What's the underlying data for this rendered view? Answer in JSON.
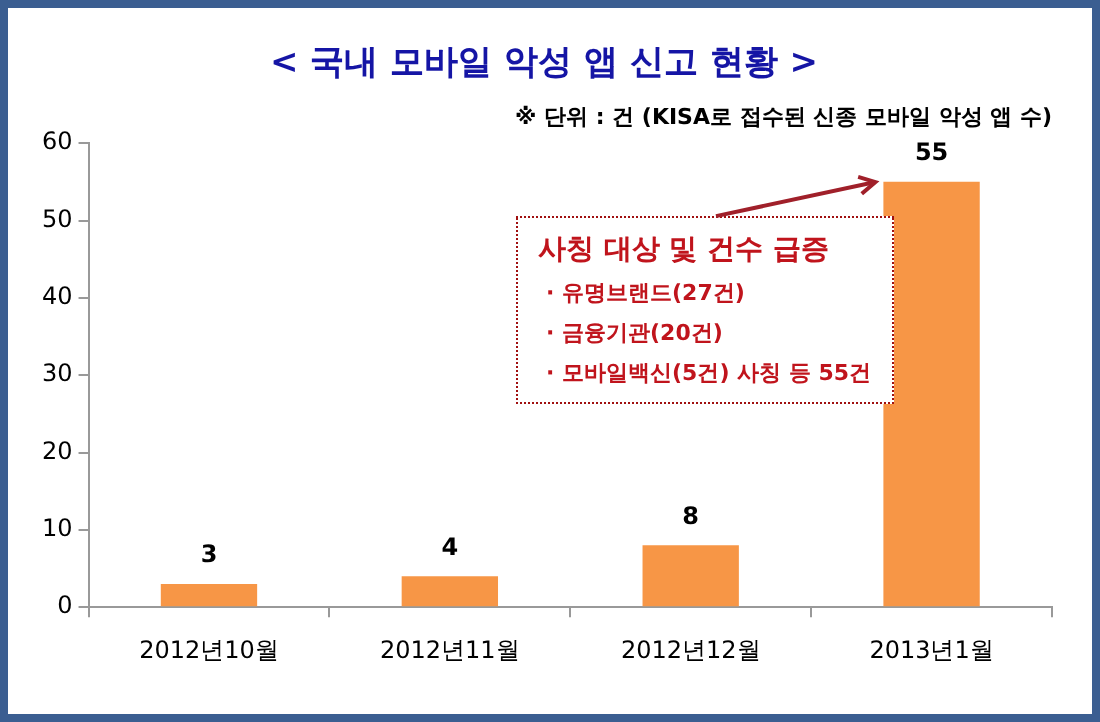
{
  "chart_data": {
    "type": "bar",
    "title": "< 국내 모바일 악성 앱 신고 현황 >",
    "subtitle": "※ 단위 : 건 (KISA로 접수된 신종 모바일 악성 앱 수)",
    "categories": [
      "2012년10월",
      "2012년11월",
      "2012년12월",
      "2013년1월"
    ],
    "values": [
      3,
      4,
      8,
      55
    ],
    "color": "#f79646",
    "ylim": [
      0,
      60
    ],
    "yticks": [
      0,
      10,
      20,
      30,
      40,
      50,
      60
    ],
    "data_labels": true,
    "legend": false,
    "annotations": [
      "사칭 대상 및 건수 급증",
      "· 유명브랜드(27건)",
      "· 금융기관(20건)",
      "· 모바일백신(5건) 사칭 등 55건"
    ]
  }
}
